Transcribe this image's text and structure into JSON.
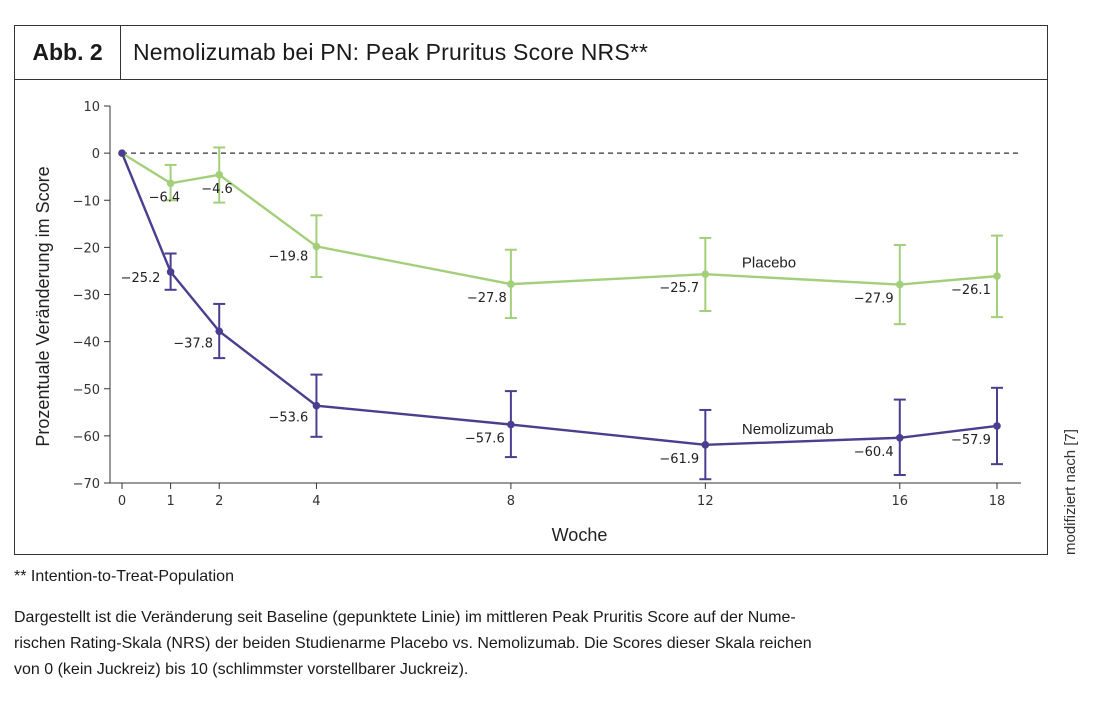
{
  "figure": {
    "label": "Abb. 2",
    "title": "Nemolizumab bei PN: Peak Pruritus Score NRS**"
  },
  "side_note": "modifiziert nach [7]",
  "footnote": "** Intention-to-Treat-Population",
  "caption": [
    "Dargestellt ist die Veränderung seit Baseline (gepunktete Linie) im mittleren Peak Pruritis Score auf der Nume-",
    "rischen Rating-Skala (NRS) der beiden Studienarme Placebo vs. Nemolizumab. Die Scores dieser Skala reichen",
    "von 0 (kein Juckreiz) bis 10 (schlimmster vorstellbarer Juckreiz)."
  ],
  "colors": {
    "placebo": "#a3cf7b",
    "nemolizumab": "#4b3e8f",
    "axis": "#333333",
    "baseline": "#333333"
  },
  "chart_data": {
    "type": "line",
    "xlabel": "Woche",
    "ylabel": "Prozentuale Veränderung im Score",
    "x_ticks": [
      0,
      1,
      2,
      4,
      8,
      12,
      16,
      18
    ],
    "y_ticks": [
      10,
      0,
      -10,
      -20,
      -30,
      -40,
      -50,
      -60,
      -70
    ],
    "ylim": [
      -70,
      10
    ],
    "xlim": [
      0,
      18
    ],
    "baseline": 0,
    "series": [
      {
        "name": "Placebo",
        "color": "#a3cf7b",
        "points": [
          {
            "x": 0,
            "y": 0,
            "err_low": 0,
            "err_high": 0,
            "label": ""
          },
          {
            "x": 1,
            "y": -6.4,
            "err_low": -10,
            "err_high": -2.5,
            "label": "−6.4"
          },
          {
            "x": 2,
            "y": -4.6,
            "err_low": -10.5,
            "err_high": 1.2,
            "label": "−4.6"
          },
          {
            "x": 4,
            "y": -19.8,
            "err_low": -26.3,
            "err_high": -13.2,
            "label": "−19.8"
          },
          {
            "x": 8,
            "y": -27.8,
            "err_low": -35,
            "err_high": -20.5,
            "label": "−27.8"
          },
          {
            "x": 12,
            "y": -25.7,
            "err_low": -33.5,
            "err_high": -18,
            "label": "−25.7"
          },
          {
            "x": 16,
            "y": -27.9,
            "err_low": -36.3,
            "err_high": -19.5,
            "label": "−27.9"
          },
          {
            "x": 18,
            "y": -26.1,
            "err_low": -34.8,
            "err_high": -17.5,
            "label": "−26.1"
          }
        ]
      },
      {
        "name": "Nemolizumab",
        "color": "#4b3e8f",
        "points": [
          {
            "x": 0,
            "y": 0,
            "err_low": 0,
            "err_high": 0,
            "label": ""
          },
          {
            "x": 1,
            "y": -25.2,
            "err_low": -29,
            "err_high": -21.3,
            "label": "−25.2"
          },
          {
            "x": 2,
            "y": -37.8,
            "err_low": -43.5,
            "err_high": -32,
            "label": "−37.8"
          },
          {
            "x": 4,
            "y": -53.6,
            "err_low": -60.2,
            "err_high": -47,
            "label": "−53.6"
          },
          {
            "x": 8,
            "y": -57.6,
            "err_low": -64.5,
            "err_high": -50.5,
            "label": "−57.6"
          },
          {
            "x": 12,
            "y": -61.9,
            "err_low": -69.2,
            "err_high": -54.5,
            "label": "−61.9"
          },
          {
            "x": 16,
            "y": -60.4,
            "err_low": -68.3,
            "err_high": -52.3,
            "label": "−60.4"
          },
          {
            "x": 18,
            "y": -57.9,
            "err_low": -66,
            "err_high": -49.8,
            "label": "−57.9"
          }
        ]
      }
    ]
  }
}
